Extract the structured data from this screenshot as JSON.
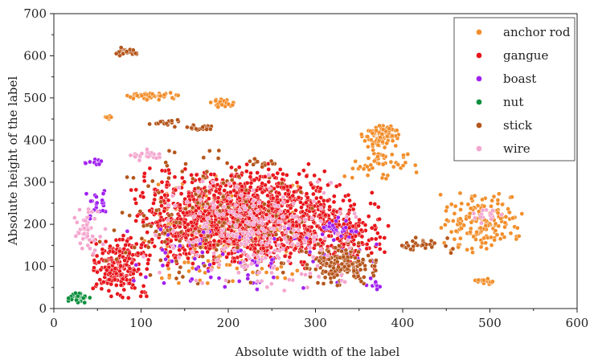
{
  "chart_data": {
    "type": "scatter",
    "title": "",
    "xlabel": "Absolute width of the label",
    "ylabel": "Absolute height of the label",
    "xlim": [
      0,
      600
    ],
    "ylim": [
      0,
      700
    ],
    "xticks": [
      0,
      100,
      200,
      300,
      400,
      500,
      600
    ],
    "yticks": [
      0,
      100,
      200,
      300,
      400,
      500,
      600,
      700
    ],
    "grid": false,
    "legend_position": "top-right",
    "series": [
      {
        "name": "anchor rod",
        "color": "#f28e2b",
        "clusters": [
          {
            "x": [
              350,
              400
            ],
            "y": [
              380,
              440
            ],
            "count": 80
          },
          {
            "x": [
              330,
              420
            ],
            "y": [
              300,
              400
            ],
            "count": 50
          },
          {
            "x": [
              440,
              540
            ],
            "y": [
              120,
              280
            ],
            "count": 160
          },
          {
            "x": [
              480,
              510
            ],
            "y": [
              50,
              75
            ],
            "count": 15
          },
          {
            "x": [
              75,
              145
            ],
            "y": [
              495,
              515
            ],
            "count": 40
          },
          {
            "x": [
              175,
              215
            ],
            "y": [
              475,
              500
            ],
            "count": 20
          },
          {
            "x": [
              55,
              75
            ],
            "y": [
              445,
              460
            ],
            "count": 8
          },
          {
            "x": [
              100,
              300
            ],
            "y": [
              50,
              320
            ],
            "count": 260
          }
        ]
      },
      {
        "name": "gangue",
        "color": "#e8151b",
        "clusters": [
          {
            "x": [
              85,
              345
            ],
            "y": [
              90,
              345
            ],
            "count": 1400
          },
          {
            "x": [
              40,
              110
            ],
            "y": [
              20,
              180
            ],
            "count": 220
          },
          {
            "x": [
              260,
              390
            ],
            "y": [
              80,
              280
            ],
            "count": 220
          }
        ]
      },
      {
        "name": "boast",
        "color": "#a020f0",
        "clusters": [
          {
            "x": [
              30,
              65
            ],
            "y": [
              340,
              355
            ],
            "count": 12
          },
          {
            "x": [
              35,
              65
            ],
            "y": [
              200,
              290
            ],
            "count": 22
          },
          {
            "x": [
              300,
              350
            ],
            "y": [
              160,
              220
            ],
            "count": 30
          },
          {
            "x": [
              355,
              380
            ],
            "y": [
              50,
              65
            ],
            "count": 12
          },
          {
            "x": [
              60,
              380
            ],
            "y": [
              30,
              200
            ],
            "count": 80
          }
        ]
      },
      {
        "name": "nut",
        "color": "#0a8f3c",
        "clusters": [
          {
            "x": [
              12,
              45
            ],
            "y": [
              12,
              40
            ],
            "count": 35
          }
        ]
      },
      {
        "name": "stick",
        "color": "#b5561c",
        "clusters": [
          {
            "x": [
              68,
              100
            ],
            "y": [
              600,
              620
            ],
            "count": 25
          },
          {
            "x": [
              150,
              190
            ],
            "y": [
              420,
              440
            ],
            "count": 18
          },
          {
            "x": [
              100,
              150
            ],
            "y": [
              430,
              450
            ],
            "count": 14
          },
          {
            "x": [
              220,
              260
            ],
            "y": [
              330,
              360
            ],
            "count": 14
          },
          {
            "x": [
              280,
              380
            ],
            "y": [
              50,
              160
            ],
            "count": 150
          },
          {
            "x": [
              390,
              470
            ],
            "y": [
              130,
              170
            ],
            "count": 30
          },
          {
            "x": [
              40,
              300
            ],
            "y": [
              40,
              400
            ],
            "count": 140
          }
        ]
      },
      {
        "name": "wire",
        "color": "#f4a6cf",
        "clusters": [
          {
            "x": [
              80,
              130
            ],
            "y": [
              350,
              380
            ],
            "count": 25
          },
          {
            "x": [
              20,
              60
            ],
            "y": [
              120,
              250
            ],
            "count": 45
          },
          {
            "x": [
              100,
              360
            ],
            "y": [
              30,
              340
            ],
            "count": 220
          },
          {
            "x": [
              470,
              520
            ],
            "y": [
              200,
              240
            ],
            "count": 15
          }
        ]
      }
    ]
  }
}
